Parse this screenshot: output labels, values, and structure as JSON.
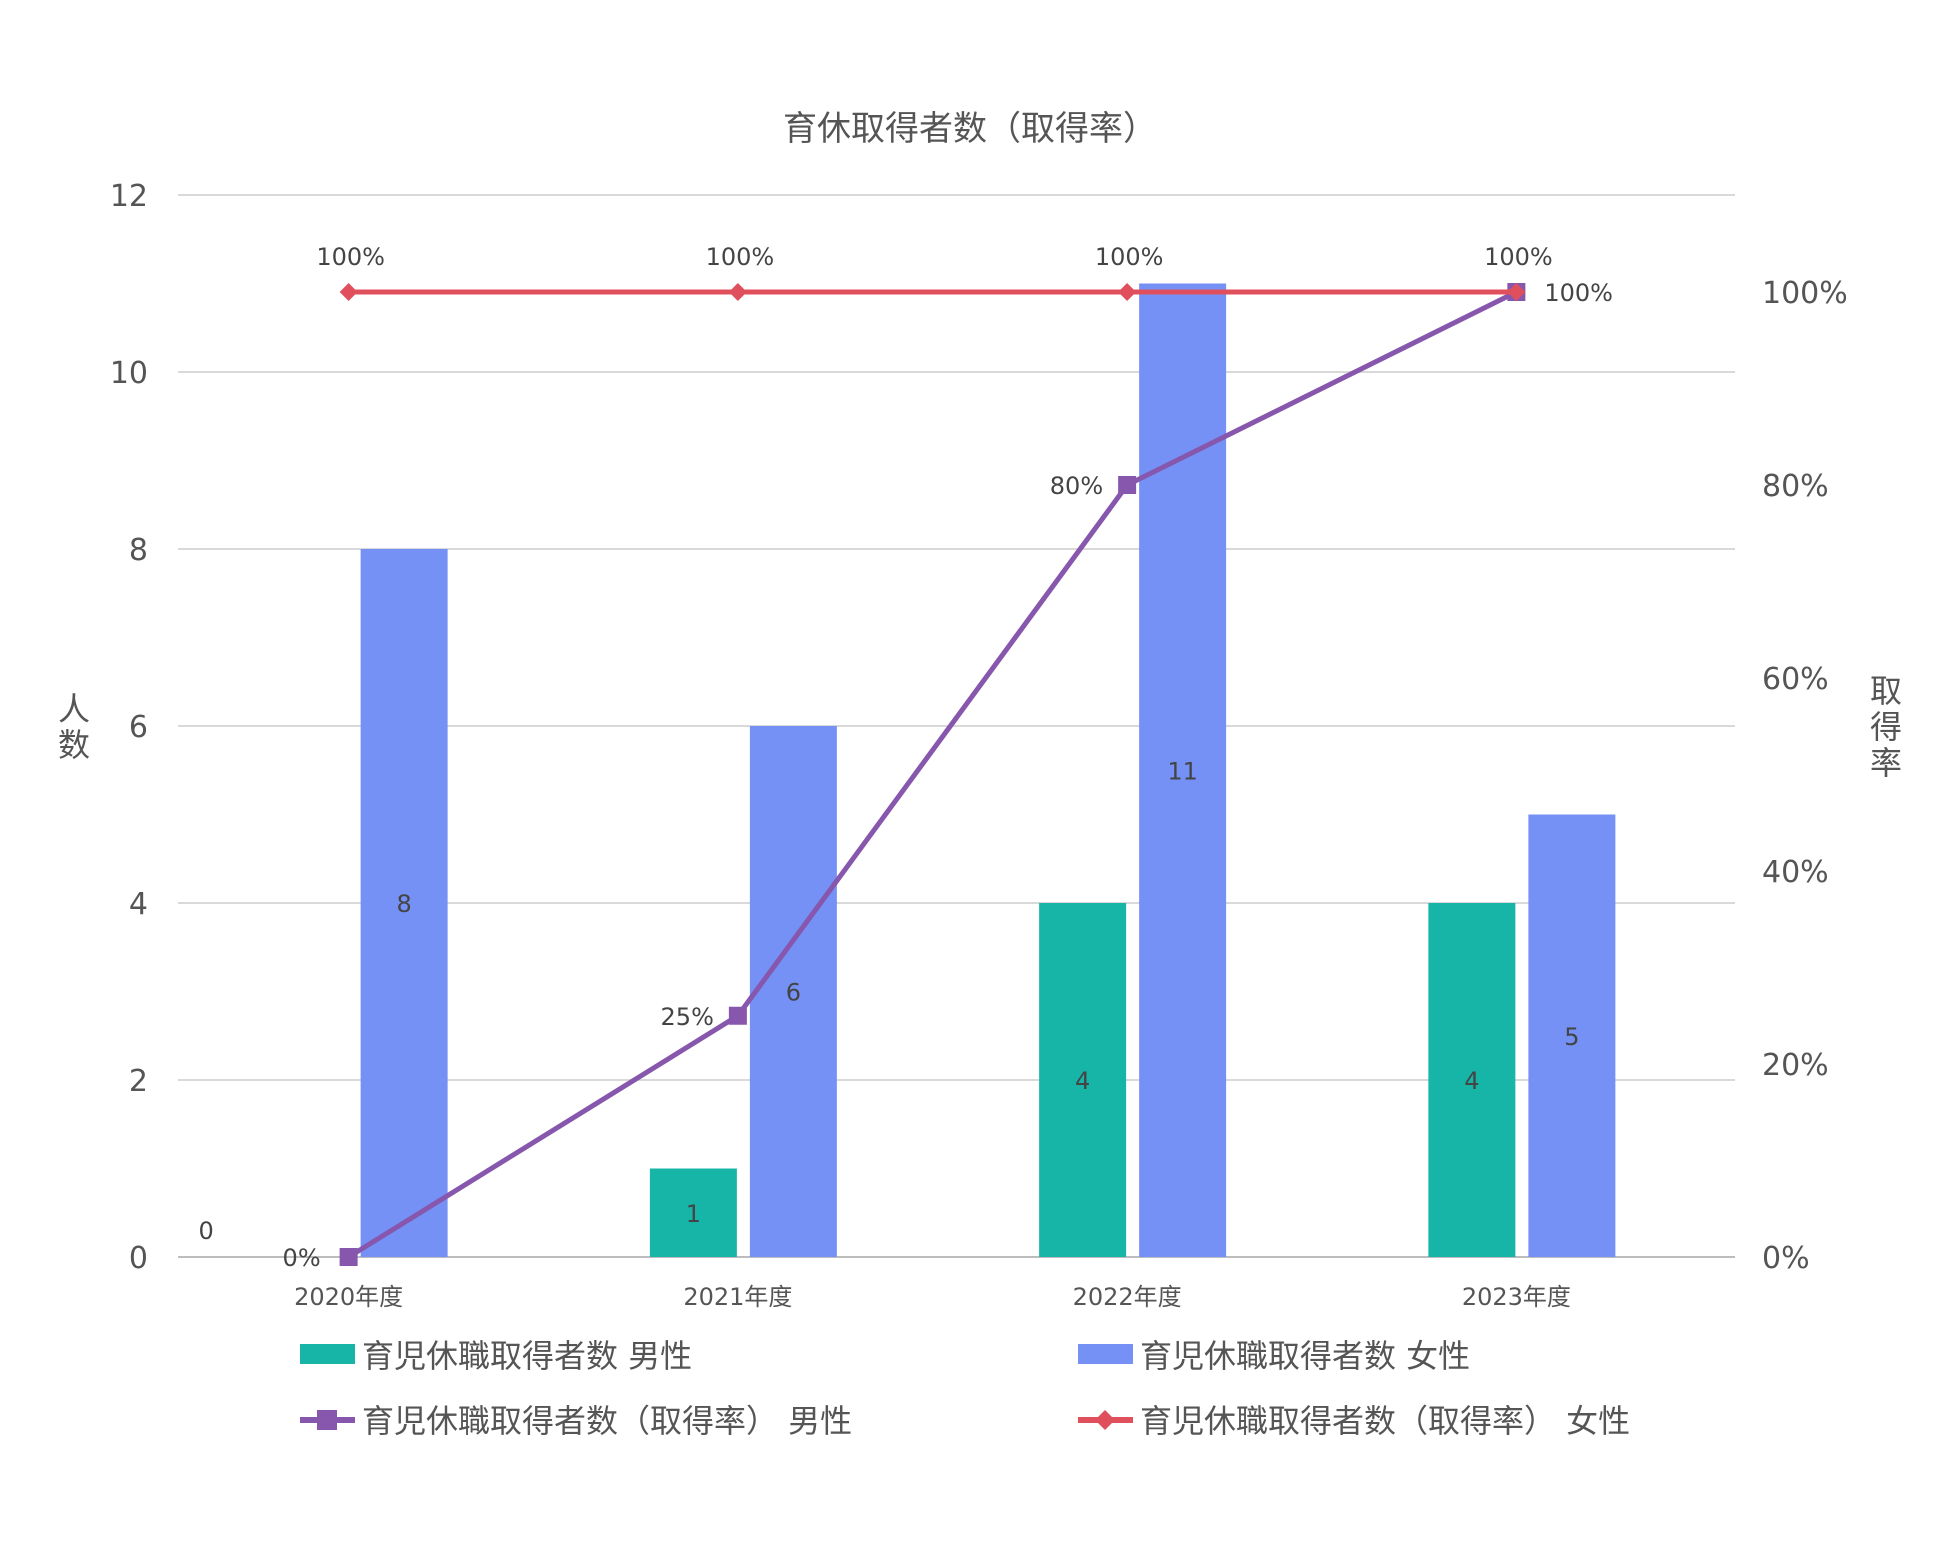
{
  "chart_data": {
    "type": "bar",
    "title": "育休取得者数（取得率）",
    "categories": [
      "2020年度",
      "2021年度",
      "2022年度",
      "2023年度"
    ],
    "y_left": {
      "label": "人数",
      "range": [
        0,
        12
      ],
      "ticks": [
        "0",
        "2",
        "4",
        "6",
        "8",
        "10",
        "12"
      ]
    },
    "y_right": {
      "label": "取得率",
      "ticks": [
        "0%",
        "20%",
        "40%",
        "60%",
        "80%",
        "100%"
      ]
    },
    "grid": true,
    "legend_position": "bottom",
    "series": [
      {
        "name": "育児休職取得者数 男性",
        "type": "bar",
        "axis": "left",
        "color": "#17b5a8",
        "values": [
          0,
          1,
          4,
          4
        ],
        "labels": [
          "0",
          "1",
          "4",
          "4"
        ]
      },
      {
        "name": "育児休職取得者数 女性",
        "type": "bar",
        "axis": "left",
        "color": "#7591f5",
        "values": [
          8,
          6,
          11,
          5
        ],
        "labels": [
          "8",
          "6",
          "11",
          "5"
        ]
      },
      {
        "name": "育児休職取得者数（取得率） 男性",
        "type": "line",
        "axis": "right",
        "marker": "square",
        "color": "#8757ad",
        "values": [
          0,
          25,
          80,
          100
        ],
        "labels": [
          "0%",
          "25%",
          "80%",
          "100%"
        ]
      },
      {
        "name": "育児休職取得者数（取得率） 女性",
        "type": "line",
        "axis": "right",
        "marker": "diamond",
        "color": "#e0505c",
        "values": [
          100,
          100,
          100,
          100
        ],
        "labels": [
          "100%",
          "100%",
          "100%",
          "100%"
        ]
      }
    ]
  }
}
